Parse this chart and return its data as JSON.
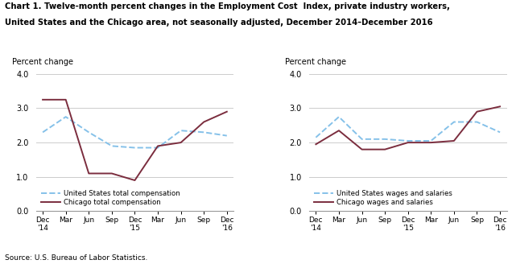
{
  "title_line1": "Chart 1. Twelve-month percent changes in the Employment Cost  Index, private industry workers,",
  "title_line2": "United States and the Chicago area, not seasonally adjusted, December 2014–December 2016",
  "source": "Source: U.S. Bureau of Labor Statistics.",
  "ylabel": "Percent change",
  "xlabels": [
    "Dec\n'14",
    "Mar",
    "Jun",
    "Sep",
    "Dec\n'15",
    "Mar",
    "Jun",
    "Sep",
    "Dec\n'16"
  ],
  "ylim": [
    0.0,
    4.0
  ],
  "yticks": [
    0.0,
    1.0,
    2.0,
    3.0,
    4.0
  ],
  "left_us_values": [
    2.3,
    2.75,
    2.3,
    1.9,
    1.85,
    1.85,
    2.35,
    2.3,
    2.2
  ],
  "left_chicago_values": [
    3.25,
    3.25,
    1.1,
    1.1,
    0.9,
    1.9,
    2.0,
    2.6,
    2.9
  ],
  "right_us_values": [
    2.15,
    2.75,
    2.1,
    2.1,
    2.05,
    2.05,
    2.6,
    2.6,
    2.3
  ],
  "right_chicago_values": [
    1.95,
    2.35,
    1.8,
    1.8,
    2.0,
    2.0,
    2.05,
    2.9,
    3.05
  ],
  "us_color": "#85C1E9",
  "chicago_color": "#7B2D3E",
  "us_linestyle": "--",
  "chicago_linestyle": "-",
  "left_legend_us": "United States total compensation",
  "left_legend_chicago": "Chicago total compensation",
  "right_legend_us": "United States wages and salaries",
  "right_legend_chicago": "Chicago wages and salaries",
  "grid_color": "#cccccc",
  "bg_color": "#ffffff",
  "linewidth": 1.4
}
